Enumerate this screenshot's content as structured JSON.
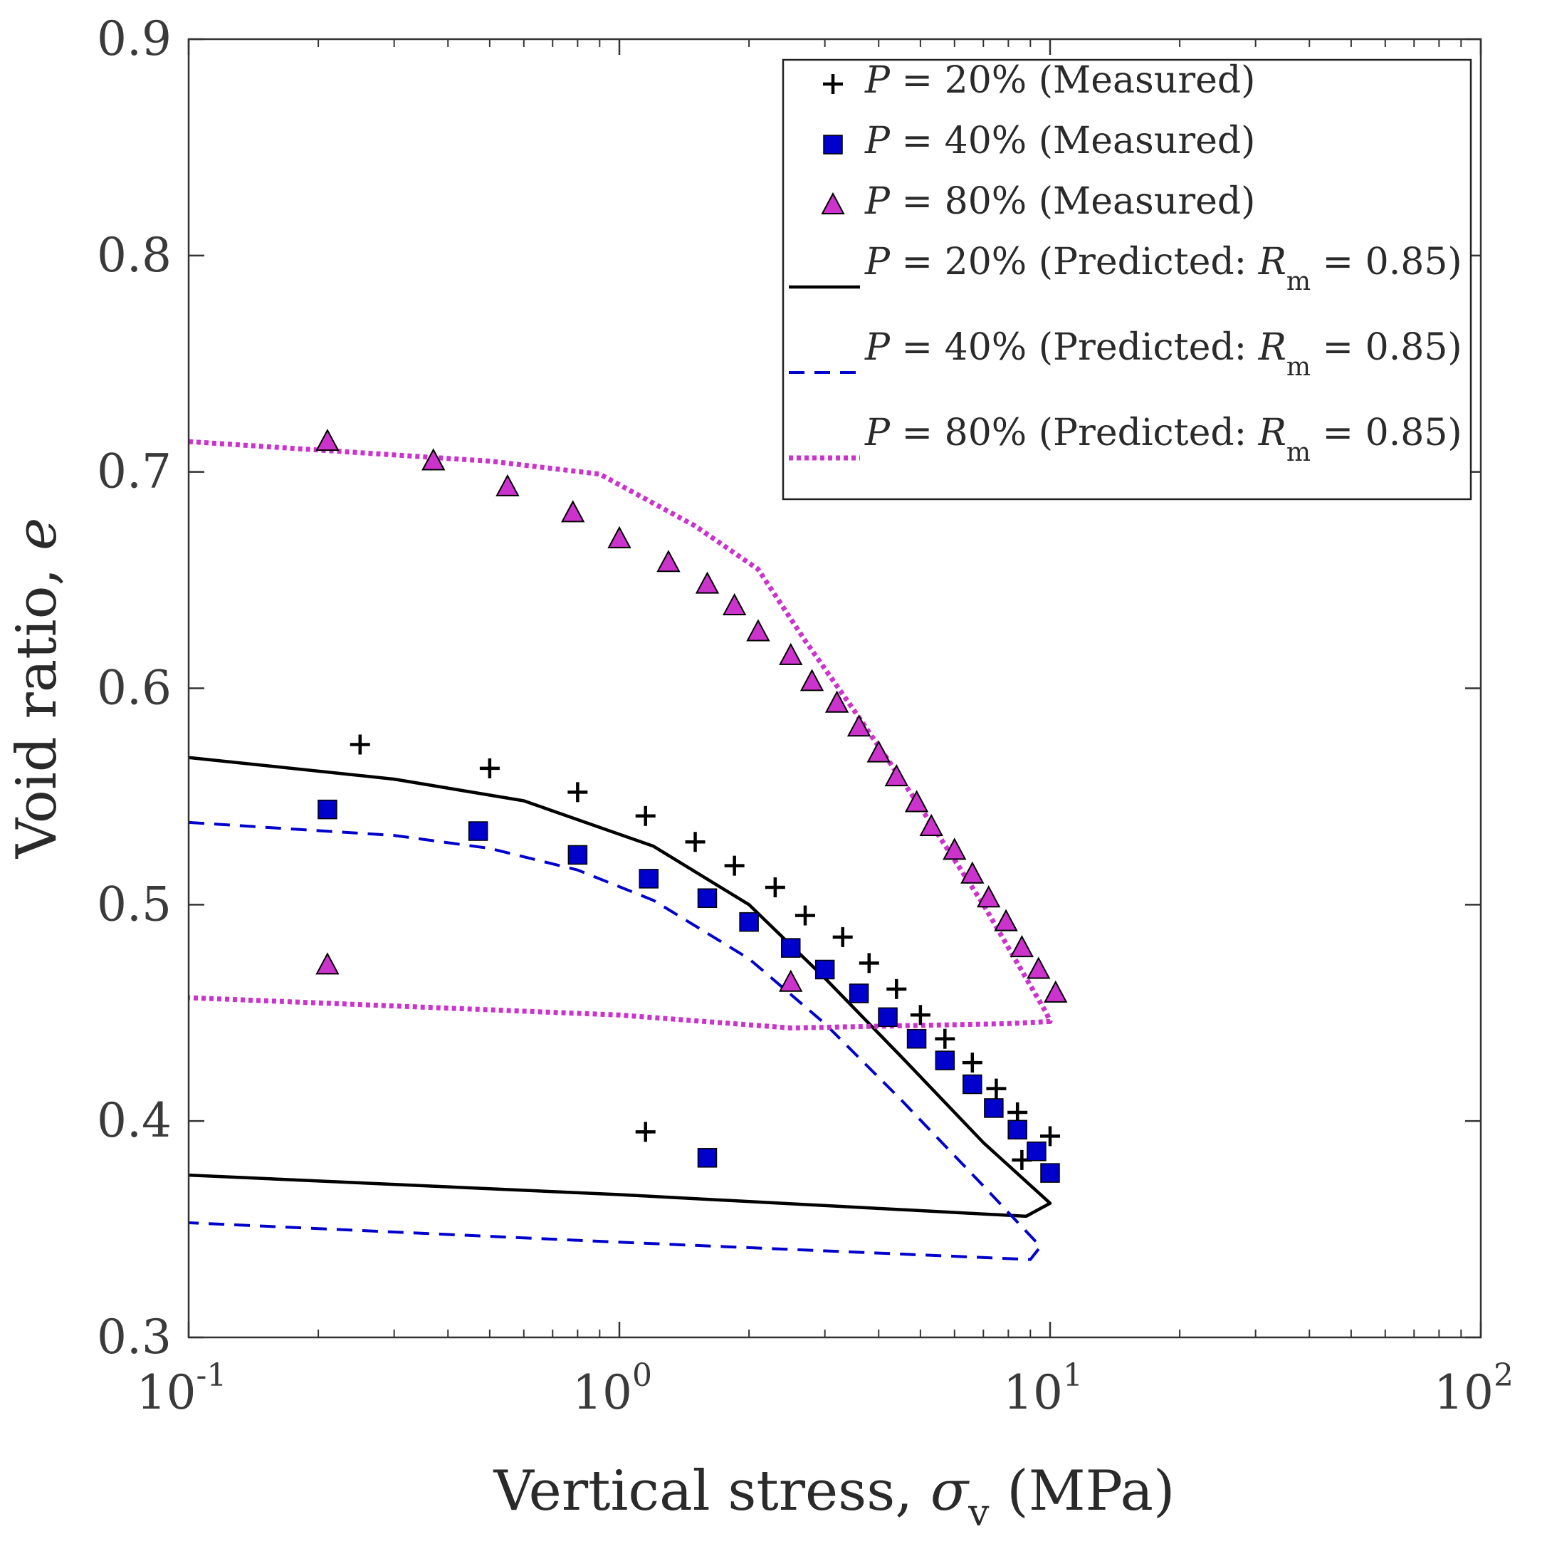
{
  "chart_data": {
    "type": "scatter",
    "x_scale": "log",
    "xlim": [
      0.1,
      100
    ],
    "ylim": [
      0.3,
      0.9
    ],
    "xlabel": {
      "prefix": "Vertical stress, ",
      "symbol": "σ",
      "subscript": "v",
      "suffix": " (MPa)"
    },
    "ylabel": {
      "prefix": "Void ratio, ",
      "symbol": "e"
    },
    "x_ticks": [
      {
        "base": "10",
        "exp": "-1",
        "value": 0.1
      },
      {
        "base": "10",
        "exp": "0",
        "value": 1
      },
      {
        "base": "10",
        "exp": "1",
        "value": 10
      },
      {
        "base": "10",
        "exp": "2",
        "value": 100
      }
    ],
    "y_ticks": [
      "0.3",
      "0.4",
      "0.5",
      "0.6",
      "0.7",
      "0.8",
      "0.9"
    ],
    "legend_position": "top-right",
    "series": [
      {
        "name": "P = 20% (Measured)",
        "legend": {
          "var": "P",
          "eq": " = 20% (Measured)"
        },
        "kind": "marker",
        "marker": "plus",
        "color": "#000000",
        "points": [
          [
            0.25,
            0.574
          ],
          [
            0.5,
            0.563
          ],
          [
            0.8,
            0.552
          ],
          [
            1.15,
            0.541
          ],
          [
            1.5,
            0.529
          ],
          [
            1.85,
            0.518
          ],
          [
            2.3,
            0.508
          ],
          [
            2.7,
            0.495
          ],
          [
            3.3,
            0.485
          ],
          [
            3.8,
            0.473
          ],
          [
            4.4,
            0.461
          ],
          [
            5.0,
            0.449
          ],
          [
            5.7,
            0.438
          ],
          [
            6.6,
            0.427
          ],
          [
            7.5,
            0.415
          ],
          [
            8.4,
            0.404
          ],
          [
            8.6,
            0.382
          ],
          [
            10.0,
            0.393
          ],
          [
            1.15,
            0.395
          ]
        ]
      },
      {
        "name": "P = 40% (Measured)",
        "legend": {
          "var": "P",
          "eq": " = 40% (Measured)"
        },
        "kind": "marker",
        "marker": "square",
        "color": "#0000cc",
        "points": [
          [
            0.21,
            0.544
          ],
          [
            0.47,
            0.534
          ],
          [
            0.8,
            0.523
          ],
          [
            1.17,
            0.512
          ],
          [
            1.6,
            0.503
          ],
          [
            2.0,
            0.492
          ],
          [
            2.5,
            0.48
          ],
          [
            3.0,
            0.47
          ],
          [
            3.6,
            0.459
          ],
          [
            4.2,
            0.448
          ],
          [
            4.9,
            0.438
          ],
          [
            5.7,
            0.428
          ],
          [
            6.6,
            0.417
          ],
          [
            7.4,
            0.406
          ],
          [
            8.4,
            0.396
          ],
          [
            9.3,
            0.386
          ],
          [
            10.0,
            0.376
          ],
          [
            1.6,
            0.383
          ]
        ]
      },
      {
        "name": "P = 80% (Measured)",
        "legend": {
          "var": "P",
          "eq": " = 80% (Measured)"
        },
        "kind": "marker",
        "marker": "triangle",
        "color": "#cc33cc",
        "points": [
          [
            0.21,
            0.714
          ],
          [
            0.37,
            0.705
          ],
          [
            0.55,
            0.693
          ],
          [
            0.78,
            0.681
          ],
          [
            1.0,
            0.669
          ],
          [
            1.3,
            0.658
          ],
          [
            1.6,
            0.648
          ],
          [
            1.85,
            0.638
          ],
          [
            2.1,
            0.626
          ],
          [
            2.5,
            0.615
          ],
          [
            2.8,
            0.603
          ],
          [
            3.2,
            0.593
          ],
          [
            3.6,
            0.582
          ],
          [
            4.0,
            0.57
          ],
          [
            4.4,
            0.559
          ],
          [
            4.9,
            0.547
          ],
          [
            5.3,
            0.536
          ],
          [
            6.0,
            0.525
          ],
          [
            6.6,
            0.514
          ],
          [
            7.2,
            0.503
          ],
          [
            7.9,
            0.492
          ],
          [
            8.6,
            0.48
          ],
          [
            9.4,
            0.47
          ],
          [
            10.3,
            0.459
          ],
          [
            0.21,
            0.472
          ],
          [
            2.5,
            0.464
          ]
        ]
      },
      {
        "name": "P = 20% (Predicted: Rm = 0.85)",
        "legend": {
          "var": "P",
          "eq": " = 20% (Predicted: ",
          "rvar": "R",
          "rsub": "m",
          "req": " = 0.85)"
        },
        "kind": "line",
        "style": "solid",
        "color": "#000000",
        "points": [
          [
            0.1,
            0.568
          ],
          [
            0.3,
            0.558
          ],
          [
            0.6,
            0.548
          ],
          [
            1.2,
            0.527
          ],
          [
            2.0,
            0.5
          ],
          [
            3.0,
            0.466
          ],
          [
            4.5,
            0.43
          ],
          [
            7.0,
            0.39
          ],
          [
            10.0,
            0.362
          ],
          [
            8.8,
            0.356
          ],
          [
            1.0,
            0.366
          ],
          [
            0.1,
            0.375
          ]
        ]
      },
      {
        "name": "P = 40% (Predicted: Rm = 0.85)",
        "legend": {
          "var": "P",
          "eq": " = 40% (Predicted: ",
          "rvar": "R",
          "rsub": "m",
          "req": " = 0.85)"
        },
        "kind": "line",
        "style": "dashed",
        "color": "#0000cc",
        "points": [
          [
            0.1,
            0.538
          ],
          [
            0.3,
            0.532
          ],
          [
            0.5,
            0.526
          ],
          [
            0.8,
            0.516
          ],
          [
            1.2,
            0.502
          ],
          [
            2.0,
            0.475
          ],
          [
            3.0,
            0.445
          ],
          [
            4.5,
            0.41
          ],
          [
            7.0,
            0.37
          ],
          [
            9.5,
            0.342
          ],
          [
            9.0,
            0.336
          ],
          [
            1.0,
            0.344
          ],
          [
            0.1,
            0.353
          ]
        ]
      },
      {
        "name": "P = 80% (Predicted: Rm = 0.85)",
        "legend": {
          "var": "P",
          "eq": " = 80% (Predicted: ",
          "rvar": "R",
          "rsub": "m",
          "req": " = 0.85)"
        },
        "kind": "line",
        "style": "dotted",
        "color": "#cc33cc",
        "points": [
          [
            0.1,
            0.714
          ],
          [
            0.5,
            0.705
          ],
          [
            0.9,
            0.699
          ],
          [
            1.5,
            0.675
          ],
          [
            2.1,
            0.655
          ],
          [
            2.7,
            0.622
          ],
          [
            3.5,
            0.59
          ],
          [
            5.0,
            0.545
          ],
          [
            7.0,
            0.5
          ],
          [
            9.8,
            0.45
          ],
          [
            10.0,
            0.446
          ],
          [
            8.0,
            0.445
          ],
          [
            2.5,
            0.443
          ],
          [
            1.0,
            0.449
          ],
          [
            0.1,
            0.457
          ]
        ]
      }
    ]
  }
}
